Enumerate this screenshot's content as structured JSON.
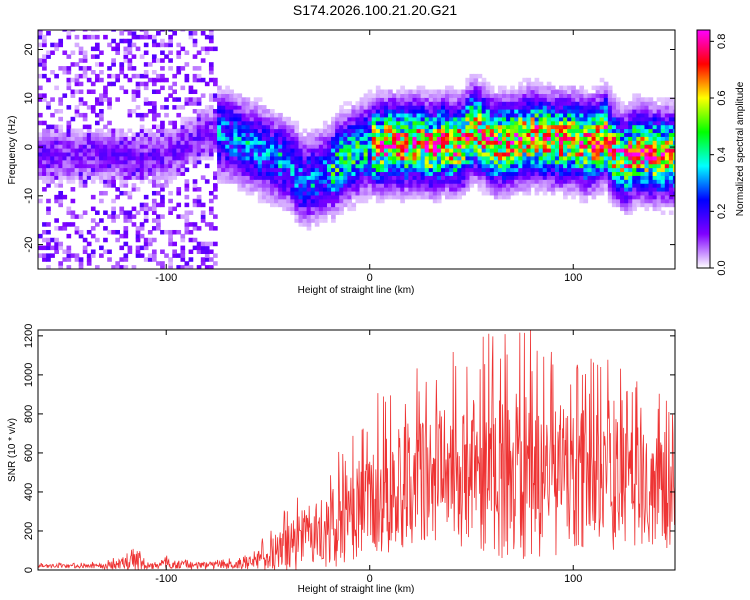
{
  "title": "S174.2026.100.21.20.G21",
  "chart_data": [
    {
      "type": "heatmap",
      "xlabel": "Height of straight line (km)",
      "ylabel": "Frequency (Hz)",
      "xlim": [
        -163,
        150
      ],
      "ylim": [
        -25,
        24
      ],
      "xticks": [
        -100,
        0,
        100
      ],
      "yticks": [
        -20,
        -10,
        0,
        10,
        20
      ],
      "colorbar": {
        "label": "Normalized spectral amplitude",
        "range": [
          0,
          0.84
        ],
        "ticks": [
          "0.0",
          "0.2",
          "0.4",
          "0.6",
          "0.8"
        ],
        "tick_values": [
          0,
          0.2,
          0.4,
          0.6,
          0.8
        ],
        "colors": [
          "#ffffff",
          "#8000ff",
          "#0000ff",
          "#00ffff",
          "#00ff00",
          "#ffff00",
          "#ff0000",
          "#ff00ff"
        ]
      },
      "ridge": {
        "description": "strong spectral ridge",
        "x": [
          -125,
          -118,
          -100,
          -80,
          -70,
          -60,
          -50,
          -40,
          -35,
          -30,
          -25,
          -20,
          -15,
          -10,
          -5,
          0,
          5,
          10,
          15,
          20,
          25,
          30,
          35,
          40,
          45,
          50,
          55,
          60,
          70,
          80,
          90,
          100,
          105,
          110,
          115,
          120,
          125,
          130,
          140,
          145,
          148
        ],
        "y": [
          -2,
          -2.5,
          -2,
          3,
          2,
          0,
          -2,
          -4,
          -7,
          -7,
          -6,
          -5,
          -3,
          -2,
          -1,
          0,
          0,
          0.5,
          0,
          0.5,
          0.5,
          -0.5,
          0.5,
          0,
          0.5,
          3.5,
          2,
          0,
          1,
          2,
          1,
          1,
          0,
          0.5,
          2,
          -2,
          -3,
          -1,
          -2,
          -2,
          -2
        ]
      }
    },
    {
      "type": "line",
      "xlabel": "Height of straight line (km)",
      "ylabel": "SNR (10 * v/v)",
      "xlim": [
        -163,
        150
      ],
      "ylim": [
        0,
        1230
      ],
      "xticks": [
        -100,
        0,
        100
      ],
      "yticks": [
        0,
        200,
        400,
        600,
        800,
        1000,
        1200
      ],
      "series": [
        {
          "name": "SNR",
          "color": "#ee3333",
          "x": [
            -163,
            -150,
            -140,
            -130,
            -120,
            -115,
            -110,
            -100,
            -90,
            -80,
            -70,
            -60,
            -55,
            -50,
            -45,
            -40,
            -35,
            -30,
            -25,
            -20,
            -15,
            -10,
            -5,
            0,
            5,
            10,
            15,
            20,
            25,
            30,
            35,
            40,
            45,
            50,
            55,
            60,
            65,
            70,
            75,
            80,
            85,
            90,
            95,
            100,
            105,
            110,
            115,
            120,
            125,
            130,
            135,
            140,
            145,
            150
          ],
          "mean": [
            20,
            20,
            20,
            20,
            35,
            40,
            25,
            30,
            25,
            25,
            25,
            30,
            50,
            60,
            90,
            120,
            150,
            170,
            190,
            210,
            240,
            270,
            310,
            340,
            380,
            400,
            420,
            440,
            460,
            480,
            490,
            500,
            500,
            500,
            500,
            490,
            480,
            480,
            480,
            480,
            470,
            470,
            470,
            460,
            460,
            450,
            440,
            440,
            430,
            430,
            430,
            420,
            410,
            400
          ],
          "spread": [
            10,
            10,
            10,
            15,
            35,
            45,
            20,
            25,
            20,
            18,
            20,
            30,
            50,
            80,
            120,
            150,
            160,
            170,
            180,
            200,
            220,
            240,
            270,
            290,
            300,
            310,
            320,
            330,
            340,
            350,
            370,
            380,
            380,
            390,
            400,
            420,
            430,
            440,
            430,
            420,
            410,
            400,
            390,
            380,
            380,
            370,
            360,
            350,
            340,
            340,
            330,
            320,
            310,
            300
          ],
          "peak": {
            "x": 79,
            "y": 1230
          }
        }
      ]
    }
  ]
}
